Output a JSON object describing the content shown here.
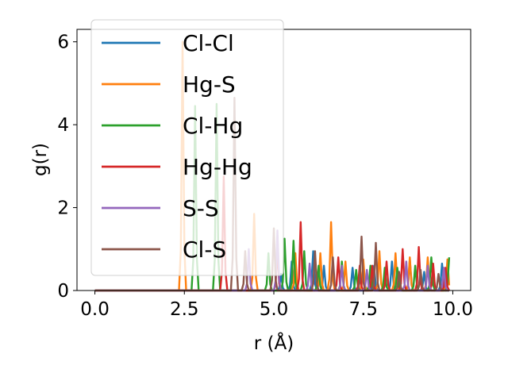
{
  "chart_data": {
    "type": "line",
    "xlabel": "r (Å)",
    "ylabel": "g(r)",
    "xlim": [
      -0.5,
      10.5
    ],
    "ylim": [
      0,
      6.3
    ],
    "xticks": [
      0.0,
      2.5,
      5.0,
      7.5,
      10.0
    ],
    "xtick_labels": [
      "0.0",
      "2.5",
      "5.0",
      "7.5",
      "10.0"
    ],
    "yticks": [
      0,
      2,
      4,
      6
    ],
    "ytick_labels": [
      "0",
      "2",
      "4",
      "6"
    ],
    "grid": false,
    "legend_position": "top-left",
    "series": [
      {
        "name": "Cl-Cl",
        "color": "#1f77b4",
        "peaks": [
          [
            5.2,
            0.4
          ],
          [
            5.5,
            0.7
          ],
          [
            6.1,
            0.95
          ],
          [
            6.4,
            0.6
          ],
          [
            7.2,
            0.55
          ],
          [
            7.8,
            0.6
          ],
          [
            8.3,
            0.7
          ],
          [
            8.8,
            0.75
          ],
          [
            9.2,
            0.45
          ],
          [
            9.7,
            0.65
          ]
        ]
      },
      {
        "name": "Hg-S",
        "color": "#ff7f0e",
        "peaks": [
          [
            2.45,
            6.0
          ],
          [
            4.45,
            1.85
          ],
          [
            5.6,
            0.9
          ],
          [
            6.3,
            0.9
          ],
          [
            6.6,
            1.65
          ],
          [
            7.0,
            0.7
          ],
          [
            7.5,
            0.75
          ],
          [
            7.95,
            0.95
          ],
          [
            8.4,
            0.9
          ],
          [
            8.8,
            0.8
          ],
          [
            9.3,
            0.8
          ],
          [
            9.85,
            0.75
          ]
        ]
      },
      {
        "name": "Cl-Hg",
        "color": "#2ca02c",
        "peaks": [
          [
            2.8,
            4.45
          ],
          [
            3.4,
            4.5
          ],
          [
            4.85,
            0.9
          ],
          [
            5.3,
            1.25
          ],
          [
            5.55,
            1.2
          ],
          [
            5.85,
            0.95
          ],
          [
            6.25,
            0.6
          ],
          [
            6.9,
            0.7
          ],
          [
            7.3,
            0.5
          ],
          [
            7.7,
            0.6
          ],
          [
            8.1,
            0.55
          ],
          [
            8.45,
            0.55
          ],
          [
            8.95,
            0.6
          ],
          [
            9.4,
            0.8
          ],
          [
            9.9,
            0.8
          ]
        ]
      },
      {
        "name": "Hg-Hg",
        "color": "#d62728",
        "peaks": [
          [
            3.6,
            2.75
          ],
          [
            5.1,
            1.0
          ],
          [
            5.75,
            1.65
          ],
          [
            6.8,
            0.8
          ],
          [
            7.4,
            0.6
          ],
          [
            7.75,
            0.6
          ],
          [
            8.15,
            0.7
          ],
          [
            8.6,
            1.0
          ],
          [
            9.05,
            1.05
          ],
          [
            9.45,
            0.65
          ],
          [
            9.8,
            0.55
          ]
        ]
      },
      {
        "name": "S-S",
        "color": "#9467bd",
        "peaks": [
          [
            4.3,
            1.0
          ],
          [
            5.1,
            1.45
          ],
          [
            6.0,
            0.65
          ],
          [
            6.9,
            0.6
          ],
          [
            7.6,
            0.5
          ],
          [
            8.7,
            0.7
          ],
          [
            9.3,
            0.6
          ],
          [
            9.75,
            0.55
          ]
        ]
      },
      {
        "name": "Cl-S",
        "color": "#8c564b",
        "peaks": [
          [
            3.9,
            4.65
          ],
          [
            4.2,
            0.95
          ],
          [
            5.0,
            1.5
          ],
          [
            6.15,
            0.95
          ],
          [
            6.65,
            0.8
          ],
          [
            7.45,
            1.3
          ],
          [
            7.85,
            1.15
          ],
          [
            8.5,
            0.45
          ],
          [
            9.1,
            0.5
          ],
          [
            9.6,
            0.4
          ]
        ]
      }
    ]
  }
}
